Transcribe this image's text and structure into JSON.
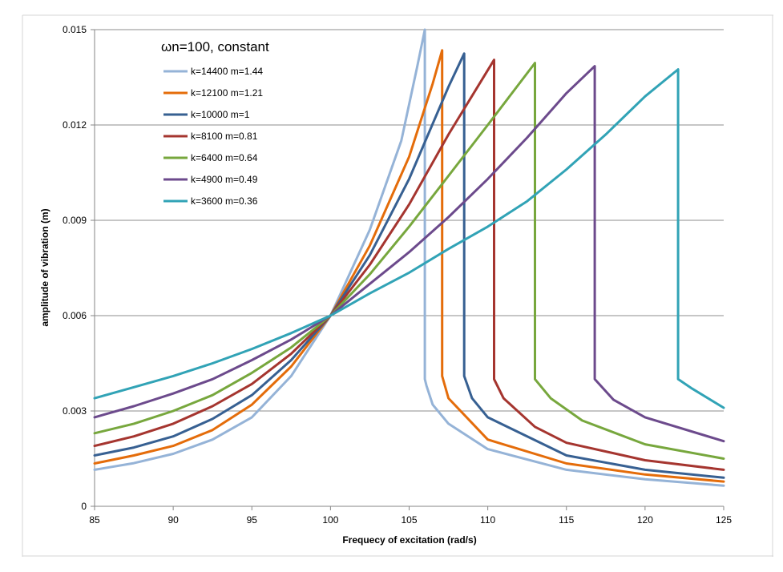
{
  "chart_data": {
    "type": "line",
    "title": "",
    "xlabel": "Frequecy of excitation (rad/s)",
    "ylabel": "amplitude of vibration (m)",
    "xlim": [
      85,
      125
    ],
    "ylim": [
      0,
      0.015
    ],
    "x_ticks": [
      "85",
      "90",
      "95",
      "100",
      "105",
      "110",
      "115",
      "120",
      "125"
    ],
    "y_ticks": [
      "0",
      "0.003",
      "0.006",
      "0.009",
      "0.012",
      "0.015"
    ],
    "grid": "horizontal",
    "legend": {
      "title": "ωn=100, constant",
      "placement": "top-left"
    },
    "series": [
      {
        "name": "k=14400 m=1.44",
        "color": "#95B3D7",
        "x": [
          85,
          87.5,
          90,
          92.5,
          95,
          97.5,
          100,
          102.5,
          104.5,
          105.5,
          106,
          106,
          106.1,
          106.5,
          107.5,
          110,
          115,
          120,
          125
        ],
        "y": [
          0.00115,
          0.00136,
          0.00165,
          0.0021,
          0.0028,
          0.0041,
          0.006,
          0.0087,
          0.0115,
          0.0138,
          0.015,
          0.004,
          0.0038,
          0.0032,
          0.0026,
          0.0018,
          0.00115,
          0.00085,
          0.00065
        ]
      },
      {
        "name": "k=12100 m=1.21",
        "color": "#E46C0A",
        "x": [
          85,
          87.5,
          90,
          92.5,
          95,
          97.5,
          100,
          102.5,
          105,
          106.5,
          107.1,
          107.1,
          107.5,
          110,
          115,
          120,
          125
        ],
        "y": [
          0.00135,
          0.0016,
          0.0019,
          0.0024,
          0.0032,
          0.0044,
          0.006,
          0.0082,
          0.011,
          0.0133,
          0.01435,
          0.0041,
          0.0034,
          0.0021,
          0.00135,
          0.001,
          0.00078
        ]
      },
      {
        "name": "k=10000 m=1",
        "color": "#376092",
        "x": [
          85,
          87.5,
          90,
          92.5,
          95,
          97.5,
          100,
          102.5,
          105,
          107.5,
          108.5,
          108.5,
          109,
          110,
          115,
          120,
          125
        ],
        "y": [
          0.0016,
          0.00185,
          0.0022,
          0.00275,
          0.0035,
          0.0046,
          0.006,
          0.0079,
          0.0103,
          0.0132,
          0.01425,
          0.0041,
          0.0034,
          0.0028,
          0.0016,
          0.00115,
          0.0009
        ]
      },
      {
        "name": "k=8100 m=0.81",
        "color": "#A5352F",
        "x": [
          85,
          87.5,
          90,
          92.5,
          95,
          97.5,
          100,
          102.5,
          105,
          107.5,
          110.4,
          110.4,
          111,
          113,
          115,
          120,
          125
        ],
        "y": [
          0.0019,
          0.0022,
          0.0026,
          0.00315,
          0.00385,
          0.0048,
          0.006,
          0.0076,
          0.0095,
          0.0117,
          0.01405,
          0.004,
          0.0034,
          0.0025,
          0.002,
          0.00145,
          0.00115
        ]
      },
      {
        "name": "k=6400 m=0.64",
        "color": "#77A73D",
        "x": [
          85,
          87.5,
          90,
          92.5,
          95,
          97.5,
          100,
          102.5,
          105,
          107.5,
          110,
          113,
          113,
          114,
          116,
          120,
          125
        ],
        "y": [
          0.0023,
          0.0026,
          0.003,
          0.0035,
          0.0042,
          0.005,
          0.006,
          0.0073,
          0.0088,
          0.0104,
          0.012,
          0.01395,
          0.004,
          0.0034,
          0.0027,
          0.00195,
          0.0015
        ]
      },
      {
        "name": "k=4900 m=0.49",
        "color": "#6C4A8C",
        "x": [
          85,
          87.5,
          90,
          92.5,
          95,
          97.5,
          100,
          102.5,
          105,
          107.5,
          110,
          112.5,
          115,
          116.8,
          116.8,
          118,
          120,
          125
        ],
        "y": [
          0.0028,
          0.00315,
          0.00355,
          0.004,
          0.0046,
          0.00525,
          0.006,
          0.007,
          0.008,
          0.0091,
          0.0103,
          0.0116,
          0.013,
          0.01385,
          0.004,
          0.00335,
          0.0028,
          0.00205
        ]
      },
      {
        "name": "k=3600 m=0.36",
        "color": "#31A3B6",
        "x": [
          85,
          87.5,
          90,
          92.5,
          95,
          97.5,
          100,
          102.5,
          105,
          107.5,
          110,
          112.5,
          115,
          117.5,
          120,
          122.1,
          122.1,
          123,
          125
        ],
        "y": [
          0.0034,
          0.00375,
          0.0041,
          0.0045,
          0.00495,
          0.00545,
          0.006,
          0.0067,
          0.00735,
          0.0081,
          0.0088,
          0.0096,
          0.0106,
          0.0117,
          0.0129,
          0.01375,
          0.004,
          0.0037,
          0.0031
        ]
      }
    ]
  }
}
